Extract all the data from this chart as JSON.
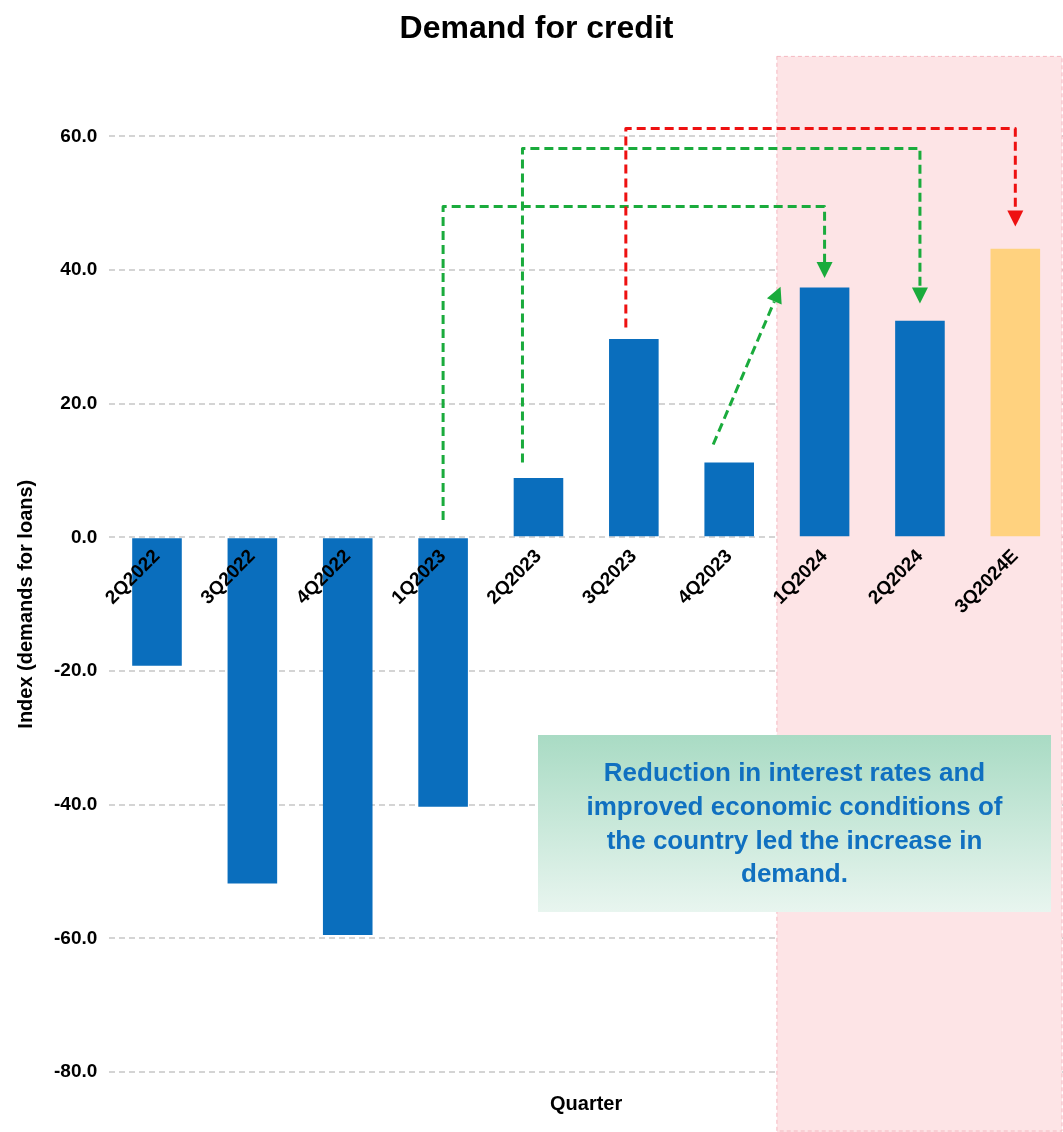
{
  "chart_data": {
    "type": "bar",
    "title": "Demand for credit",
    "xlabel": "Quarter",
    "ylabel": "Index (demands for loans)",
    "categories": [
      "2Q2022",
      "3Q2022",
      "4Q2022",
      "1Q2023",
      "2Q2023",
      "3Q2023",
      "4Q2023",
      "1Q2024",
      "2Q2024",
      "3Q2024E"
    ],
    "values": [
      -19.2,
      -51.8,
      -59.5,
      -40.3,
      8.9,
      29.7,
      11.2,
      37.4,
      32.4,
      43.2
    ],
    "colors": [
      "#0a6ebd",
      "#0a6ebd",
      "#0a6ebd",
      "#0a6ebd",
      "#0a6ebd",
      "#0a6ebd",
      "#0a6ebd",
      "#0a6ebd",
      "#0a6ebd",
      "#ffd27f"
    ],
    "ylim": [
      -80,
      60
    ],
    "yticks": [
      {
        "value": -80,
        "label": "-80.0"
      },
      {
        "value": -60,
        "label": "-60.0"
      },
      {
        "value": -40,
        "label": "-40.0"
      },
      {
        "value": -20,
        "label": "-20.0"
      },
      {
        "value": 0,
        "label": "0.0"
      },
      {
        "value": 20,
        "label": "20.0"
      },
      {
        "value": 40,
        "label": "40.0"
      },
      {
        "value": 60,
        "label": "60.0"
      }
    ],
    "grid": "y",
    "legend": false,
    "bands": [
      {
        "axis": "x",
        "from": "1Q2024",
        "to": "3Q2024E",
        "color": "#fde4e6"
      }
    ],
    "annotations": [
      "Reduction in interest rates and improved economic conditions of the country led the increase in demand."
    ]
  }
}
